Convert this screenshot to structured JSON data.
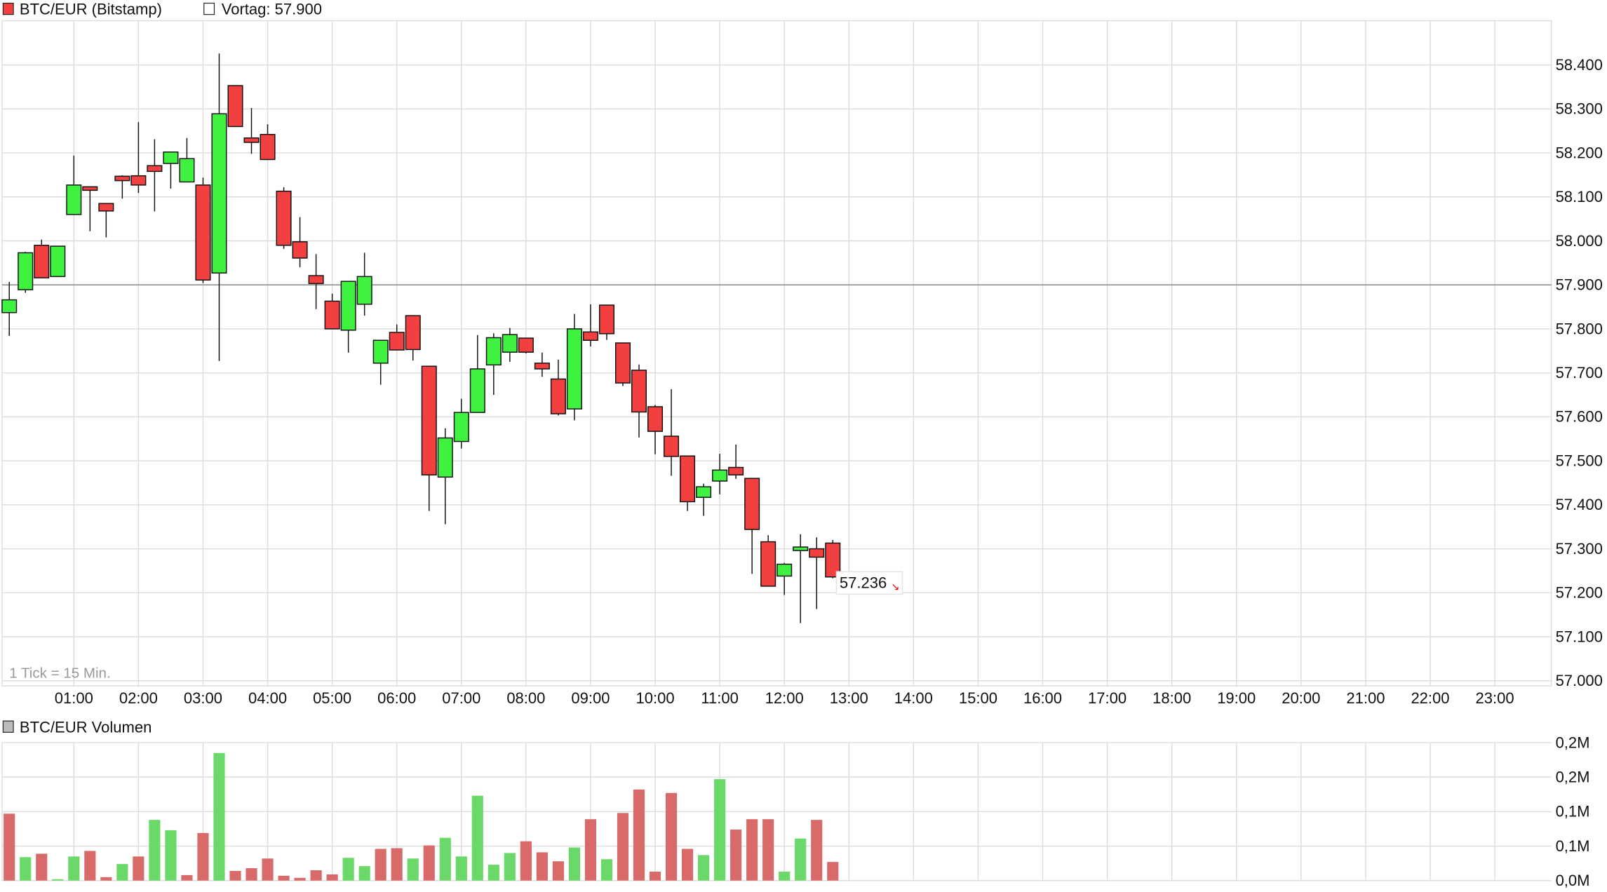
{
  "header": {
    "series_label": "BTC/EUR (Bitstamp)",
    "prev_label": "Vortag: 57.900",
    "tick_note": "1 Tick = 15 Min.",
    "last_price": "57.236",
    "volume_label": "BTC/EUR Volumen"
  },
  "colors": {
    "up": "#3ff23f",
    "down": "#f24040",
    "vol_up": "#6ad96a",
    "vol_down": "#d96a6a",
    "grid": "#dddddd",
    "prev_line": "#888888"
  },
  "chart_data": [
    {
      "type": "candlestick",
      "title": "BTC/EUR (Bitstamp)",
      "interval_minutes": 15,
      "reference_line": {
        "label": "Vortag",
        "value": 57.9
      },
      "ylim": [
        57.0,
        58.5
      ],
      "y_ticks": [
        "57.000",
        "57.100",
        "57.200",
        "57.300",
        "57.400",
        "57.500",
        "57.600",
        "57.700",
        "57.800",
        "57.900",
        "58.000",
        "58.100",
        "58.200",
        "58.300",
        "58.400"
      ],
      "x_ticks": [
        "01:00",
        "02:00",
        "03:00",
        "04:00",
        "05:00",
        "06:00",
        "07:00",
        "08:00",
        "09:00",
        "10:00",
        "11:00",
        "12:00",
        "13:00",
        "14:00",
        "15:00",
        "16:00",
        "17:00",
        "18:00",
        "19:00",
        "20:00",
        "21:00",
        "22:00",
        "23:00"
      ],
      "ohlc": [
        [
          57.837,
          57.907,
          57.784,
          57.866
        ],
        [
          57.889,
          57.975,
          57.882,
          57.973
        ],
        [
          57.99,
          58.003,
          57.916,
          57.916
        ],
        [
          57.919,
          57.988,
          57.919,
          57.988
        ],
        [
          58.06,
          58.194,
          58.06,
          58.127
        ],
        [
          58.123,
          58.123,
          58.022,
          58.115
        ],
        [
          58.085,
          58.085,
          58.008,
          58.068
        ],
        [
          58.147,
          58.149,
          58.096,
          58.137
        ],
        [
          58.148,
          58.27,
          58.109,
          58.127
        ],
        [
          58.171,
          58.231,
          58.067,
          58.158
        ],
        [
          58.176,
          58.202,
          58.119,
          58.202
        ],
        [
          58.134,
          58.234,
          58.134,
          58.187
        ],
        [
          58.127,
          58.144,
          57.904,
          57.911
        ],
        [
          57.927,
          58.426,
          57.727,
          58.289
        ],
        [
          58.353,
          58.353,
          58.26,
          58.26
        ],
        [
          58.234,
          58.302,
          58.198,
          58.224
        ],
        [
          58.242,
          58.265,
          58.185,
          58.185
        ],
        [
          58.113,
          58.122,
          57.982,
          57.99
        ],
        [
          57.998,
          58.054,
          57.94,
          57.961
        ],
        [
          57.921,
          57.97,
          57.845,
          57.903
        ],
        [
          57.863,
          57.88,
          57.8,
          57.8
        ],
        [
          57.797,
          57.908,
          57.746,
          57.908
        ],
        [
          57.856,
          57.973,
          57.83,
          57.919
        ],
        [
          57.722,
          57.774,
          57.673,
          57.774
        ],
        [
          57.792,
          57.81,
          57.752,
          57.752
        ],
        [
          57.83,
          57.83,
          57.728,
          57.753
        ],
        [
          57.715,
          57.715,
          57.386,
          57.468
        ],
        [
          57.463,
          57.574,
          57.356,
          57.552
        ],
        [
          57.544,
          57.641,
          57.528,
          57.61
        ],
        [
          57.61,
          57.786,
          57.61,
          57.709
        ],
        [
          57.718,
          57.79,
          57.65,
          57.78
        ],
        [
          57.747,
          57.802,
          57.725,
          57.787
        ],
        [
          57.779,
          57.779,
          57.744,
          57.747
        ],
        [
          57.722,
          57.746,
          57.691,
          57.709
        ],
        [
          57.686,
          57.73,
          57.603,
          57.607
        ],
        [
          57.618,
          57.834,
          57.592,
          57.8
        ],
        [
          57.793,
          57.856,
          57.76,
          57.774
        ],
        [
          57.854,
          57.854,
          57.775,
          57.789
        ],
        [
          57.768,
          57.768,
          57.67,
          57.677
        ],
        [
          57.706,
          57.719,
          57.553,
          57.611
        ],
        [
          57.623,
          57.627,
          57.515,
          57.567
        ],
        [
          57.556,
          57.663,
          57.466,
          57.51
        ],
        [
          57.511,
          57.511,
          57.386,
          57.407
        ],
        [
          57.417,
          57.448,
          57.375,
          57.441
        ],
        [
          57.454,
          57.516,
          57.424,
          57.479
        ],
        [
          57.485,
          57.537,
          57.459,
          57.468
        ],
        [
          57.46,
          57.46,
          57.243,
          57.344
        ],
        [
          57.316,
          57.331,
          57.215,
          57.215
        ],
        [
          57.238,
          57.268,
          57.195,
          57.265
        ],
        [
          57.296,
          57.333,
          57.131,
          57.304
        ],
        [
          57.3,
          57.326,
          57.163,
          57.281
        ],
        [
          57.313,
          57.32,
          57.233,
          57.236
        ]
      ]
    },
    {
      "type": "bar",
      "title": "BTC/EUR Volumen",
      "unit": "M",
      "ylim": [
        0,
        0.2
      ],
      "y_ticks": [
        "0,0M",
        "0,1M",
        "0,1M",
        "0,2M",
        "0,2M"
      ],
      "values": [
        0.097,
        0.034,
        0.039,
        0.002,
        0.035,
        0.043,
        0.005,
        0.024,
        0.035,
        0.088,
        0.073,
        0.008,
        0.069,
        0.185,
        0.014,
        0.018,
        0.032,
        0.007,
        0.004,
        0.015,
        0.009,
        0.033,
        0.021,
        0.046,
        0.047,
        0.032,
        0.051,
        0.062,
        0.035,
        0.123,
        0.023,
        0.04,
        0.057,
        0.041,
        0.028,
        0.048,
        0.089,
        0.031,
        0.098,
        0.132,
        0.013,
        0.127,
        0.046,
        0.037,
        0.147,
        0.074,
        0.089,
        0.089,
        0.013,
        0.061,
        0.088,
        0.027
      ],
      "up": [
        0,
        1,
        0,
        1,
        1,
        0,
        0,
        1,
        0,
        1,
        1,
        0,
        0,
        1,
        0,
        0,
        0,
        0,
        0,
        0,
        0,
        1,
        1,
        0,
        0,
        1,
        0,
        1,
        1,
        1,
        1,
        1,
        0,
        0,
        0,
        1,
        0,
        1,
        0,
        0,
        0,
        0,
        0,
        1,
        1,
        0,
        0,
        0,
        1,
        1,
        0,
        0
      ]
    }
  ]
}
